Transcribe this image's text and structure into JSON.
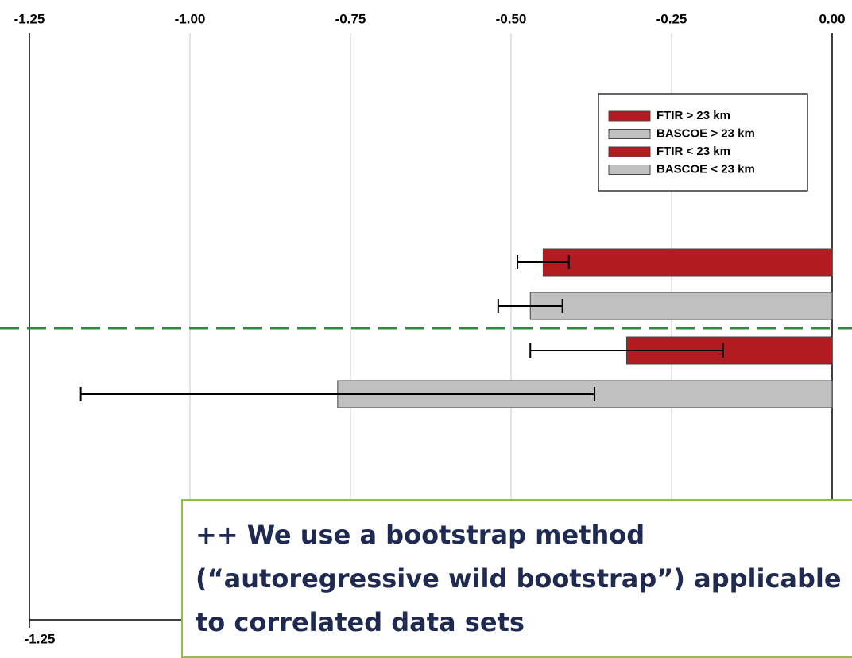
{
  "chart_data": {
    "type": "hbar",
    "xlim": [
      -1.25,
      0
    ],
    "xticks": [
      -1.25,
      {
        "value": -1,
        "label": "-1.00"
      },
      -0.75,
      {
        "value": -0.5,
        "label": "-0.50"
      },
      -0.25,
      {
        "value": 0,
        "label": "0.00"
      }
    ],
    "grid": true,
    "series": [
      {
        "name": "FTIR > 23 km",
        "color": "#b01c22",
        "values": [
          -0.45
        ],
        "errors": [
          0.04
        ]
      },
      {
        "name": "BASCOE > 23 km",
        "color": "#c0c0c0",
        "values": [
          -0.47
        ],
        "errors": [
          0.05
        ]
      },
      {
        "name": "FTIR < 23 km",
        "color": "#b01c22",
        "values": [
          -0.32
        ],
        "errors": [
          0.15
        ]
      },
      {
        "name": "BASCOE < 23 km",
        "color": "#c0c0c0",
        "values": [
          -0.77
        ],
        "errors": [
          0.4
        ]
      }
    ]
  },
  "note": {
    "lines": [
      "++ We use a bootstrap method",
      "(“autoregressive wild bootstrap”) applicable",
      "to correlated data sets"
    ]
  }
}
